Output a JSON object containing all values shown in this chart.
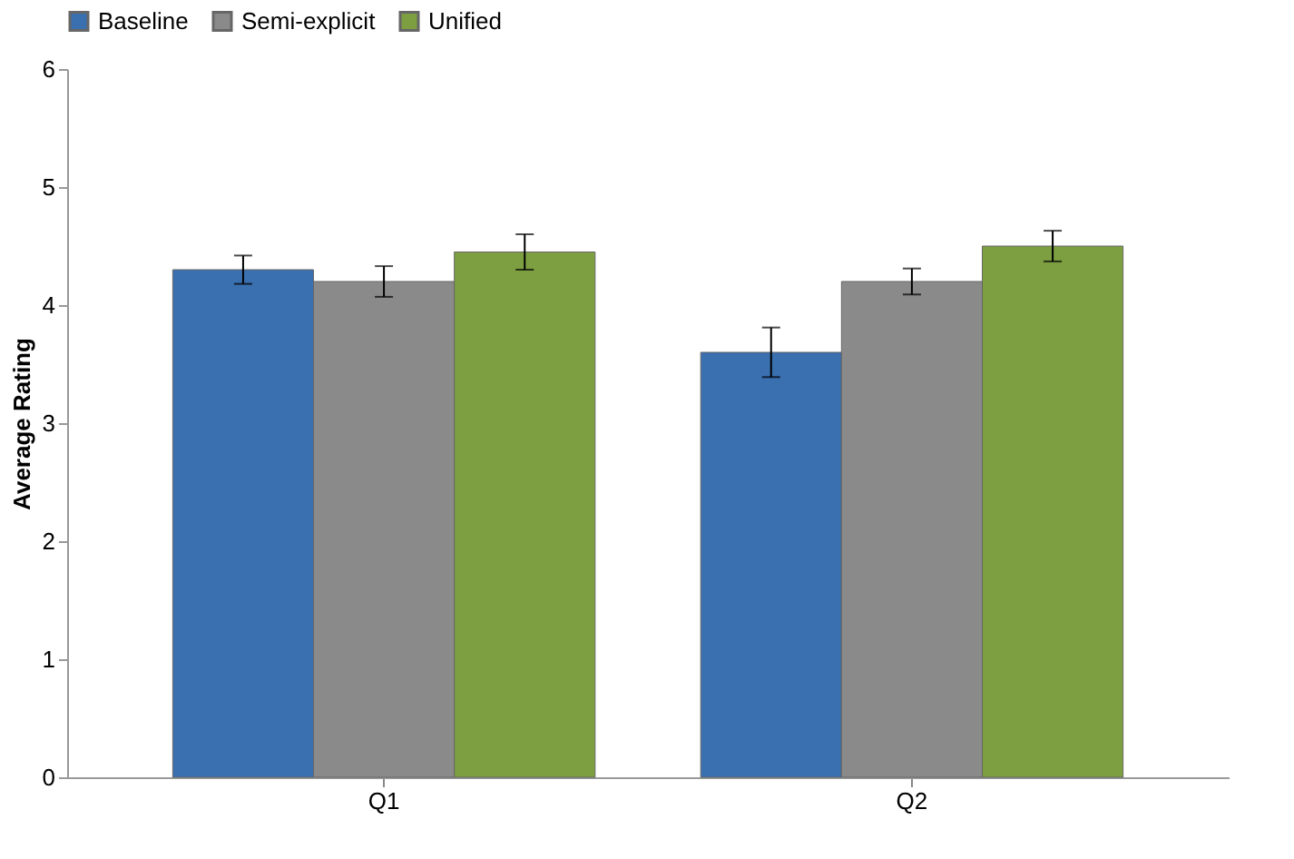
{
  "chart_data": {
    "type": "bar",
    "ylabel": "Average Rating",
    "categories": [
      "Q1",
      "Q2"
    ],
    "series": [
      {
        "name": "Baseline",
        "color": "#3a6fb0",
        "values": [
          4.3,
          3.6
        ],
        "errors": [
          0.12,
          0.21
        ]
      },
      {
        "name": "Semi-explicit",
        "color": "#8a8a8a",
        "values": [
          4.2,
          4.2
        ],
        "errors": [
          0.13,
          0.11
        ]
      },
      {
        "name": "Unified",
        "color": "#7d9f41",
        "values": [
          4.45,
          4.5
        ],
        "errors": [
          0.15,
          0.13
        ]
      }
    ],
    "ylim": [
      0,
      6
    ],
    "yticks": [
      0,
      1,
      2,
      3,
      4,
      5,
      6
    ],
    "grid": false,
    "legend": "top"
  }
}
